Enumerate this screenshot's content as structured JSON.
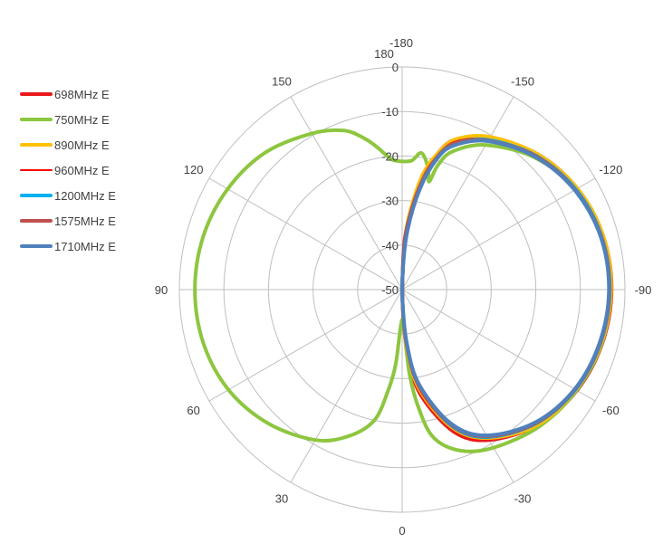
{
  "chart_data": {
    "type": "line",
    "subtype": "polar-radiation-pattern",
    "title": "",
    "radial_axis": {
      "range": [
        -50,
        0
      ],
      "ticks": [
        0,
        -10,
        -20,
        -30,
        -40,
        -50
      ],
      "tick_labels": [
        "0",
        "-10",
        "-20",
        "-30",
        "-40",
        "-50"
      ]
    },
    "angular_axis": {
      "direction": "counterclockwise",
      "zero_at": "bottom",
      "spokes_every_deg": 30,
      "tick_labels": [
        {
          "angle": 0,
          "label": "0"
        },
        {
          "angle": 30,
          "label": "30"
        },
        {
          "angle": 60,
          "label": "60"
        },
        {
          "angle": 90,
          "label": "90"
        },
        {
          "angle": 120,
          "label": "120"
        },
        {
          "angle": 150,
          "label": "150"
        },
        {
          "angle": 180,
          "label": "180"
        },
        {
          "angle": -180,
          "label": "-180"
        },
        {
          "angle": -150,
          "label": "-150"
        },
        {
          "angle": -120,
          "label": "-120"
        },
        {
          "angle": -90,
          "label": "-90"
        },
        {
          "angle": -60,
          "label": "-60"
        },
        {
          "angle": -30,
          "label": "-30"
        }
      ]
    },
    "grid": true,
    "legend_position": "left",
    "series": [
      {
        "name": "698MHz E",
        "color": "#e8191b",
        "width": 4,
        "angles": [
          -178,
          -175,
          -170,
          -165,
          -160,
          -150,
          -135,
          -120,
          -105,
          -90,
          -75,
          -60,
          -45,
          -30,
          -20,
          -10,
          -5,
          -2
        ],
        "values": [
          -45,
          -35,
          -25,
          -18,
          -14,
          -10.7,
          -7,
          -4.6,
          -3.3,
          -3,
          -3.5,
          -4.7,
          -7,
          -11,
          -16,
          -26,
          -35,
          -45
        ]
      },
      {
        "name": "750MHz E",
        "color": "#8dc63f",
        "width": 4,
        "angles": [
          -176,
          -172,
          -168,
          -166,
          -164,
          -160,
          -150,
          -135,
          -120,
          -105,
          -90,
          -75,
          -60,
          -45,
          -30,
          -20,
          -12,
          -8,
          -5,
          -2,
          2,
          5,
          8,
          12,
          20,
          30,
          45,
          60,
          75,
          90,
          105,
          120,
          135,
          150,
          160,
          166,
          170,
          174,
          177
        ],
        "values": [
          -21,
          -19,
          -22,
          -25,
          -21,
          -17,
          -12.5,
          -8,
          -5,
          -3.8,
          -3.3,
          -3.6,
          -4.8,
          -6.5,
          -9,
          -11.5,
          -16,
          -23,
          -31,
          -42,
          -42,
          -33,
          -27,
          -20,
          -15,
          -11,
          -7.5,
          -5,
          -3.8,
          -3.5,
          -3.8,
          -4.8,
          -6.5,
          -9.5,
          -12,
          -15,
          -17.5,
          -20,
          -21
        ]
      },
      {
        "name": "890MHz E",
        "color": "#ffc000",
        "width": 4,
        "angles": [
          -178,
          -175,
          -170,
          -165,
          -160,
          -150,
          -135,
          -120,
          -105,
          -90,
          -75,
          -60,
          -45,
          -30,
          -20,
          -10,
          -5,
          -2
        ],
        "values": [
          -43,
          -34,
          -24,
          -18,
          -14,
          -10.4,
          -7,
          -4.6,
          -3.3,
          -3.1,
          -3.7,
          -5,
          -7,
          -11.5,
          -17,
          -27,
          -36,
          -45
        ]
      },
      {
        "name": "960MHz E",
        "color": "#ff0000",
        "width": 1.5,
        "angles": [
          -178,
          -175,
          -170,
          -165,
          -160,
          -150,
          -135,
          -120,
          -105,
          -90,
          -75,
          -60,
          -45,
          -30,
          -20,
          -10,
          -5,
          -2
        ],
        "values": [
          -45,
          -36,
          -25,
          -18.5,
          -14.5,
          -11,
          -7.3,
          -5,
          -3.6,
          -3.3,
          -3.8,
          -5,
          -7.3,
          -11.5,
          -17,
          -27,
          -36,
          -45
        ]
      },
      {
        "name": "1200MHz E",
        "color": "#00b0f0",
        "width": 4,
        "angles": [
          -178,
          -175,
          -170,
          -165,
          -160,
          -150,
          -135,
          -120,
          -105,
          -90,
          -75,
          -60,
          -45,
          -30,
          -20,
          -10,
          -5,
          -2
        ],
        "values": [
          -45,
          -36,
          -26,
          -19,
          -15,
          -11.2,
          -7.5,
          -5,
          -3.7,
          -3.4,
          -3.9,
          -5.1,
          -7.5,
          -11.8,
          -17.5,
          -28,
          -37,
          -46
        ]
      },
      {
        "name": "1575MHz E",
        "color": "#c0504d",
        "width": 4,
        "angles": [
          -178,
          -175,
          -170,
          -165,
          -160,
          -150,
          -135,
          -120,
          -105,
          -90,
          -75,
          -60,
          -45,
          -30,
          -20,
          -10,
          -5,
          -2
        ],
        "values": [
          -42,
          -35,
          -26,
          -19,
          -15,
          -11.4,
          -7.6,
          -5.2,
          -3.8,
          -3.5,
          -4,
          -5.2,
          -7.6,
          -12,
          -17.8,
          -28,
          -37,
          -46
        ]
      },
      {
        "name": "1710MHz E",
        "color": "#4f81bd",
        "width": 4,
        "angles": [
          -178,
          -175,
          -170,
          -165,
          -160,
          -150,
          -135,
          -120,
          -105,
          -90,
          -75,
          -60,
          -45,
          -30,
          -20,
          -10,
          -5,
          -2
        ],
        "values": [
          -46,
          -37,
          -27,
          -19.5,
          -15.5,
          -11.5,
          -7.8,
          -5.3,
          -3.9,
          -3.6,
          -4.1,
          -5.3,
          -7.8,
          -12.2,
          -18,
          -28.5,
          -38,
          -47
        ]
      }
    ]
  }
}
